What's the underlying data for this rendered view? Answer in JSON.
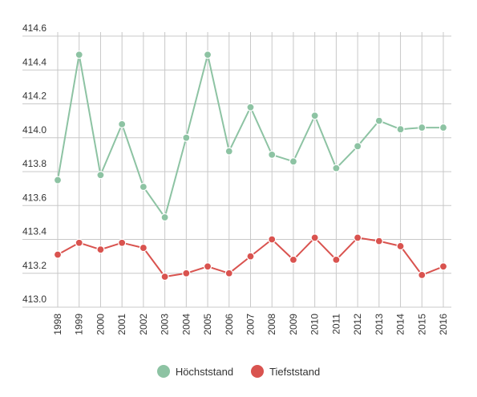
{
  "chart_data": {
    "type": "line",
    "x": [
      "1998",
      "1999",
      "2000",
      "2001",
      "2002",
      "2003",
      "2004",
      "2005",
      "2006",
      "2007",
      "2008",
      "2009",
      "2010",
      "2011",
      "2012",
      "2013",
      "2014",
      "2015",
      "2016"
    ],
    "series": [
      {
        "name": "Höchststand",
        "color": "#8dc3a3",
        "values": [
          413.75,
          414.49,
          413.78,
          414.08,
          413.71,
          413.53,
          414.0,
          414.49,
          413.92,
          414.18,
          413.9,
          413.86,
          414.13,
          413.82,
          413.95,
          414.1,
          414.05,
          414.06,
          414.06
        ]
      },
      {
        "name": "Tiefststand",
        "color": "#d9534f",
        "values": [
          413.31,
          413.38,
          413.34,
          413.38,
          413.35,
          413.18,
          413.2,
          413.24,
          413.2,
          413.3,
          413.4,
          413.28,
          413.41,
          413.28,
          413.41,
          413.39,
          413.36,
          413.19,
          413.24
        ]
      }
    ],
    "ylim": [
      413.0,
      414.6
    ],
    "yticks": [
      "413.0",
      "413.2",
      "413.4",
      "413.6",
      "413.8",
      "414.0",
      "414.2",
      "414.4",
      "414.6"
    ],
    "grid": true,
    "legend_position": "bottom-center"
  }
}
